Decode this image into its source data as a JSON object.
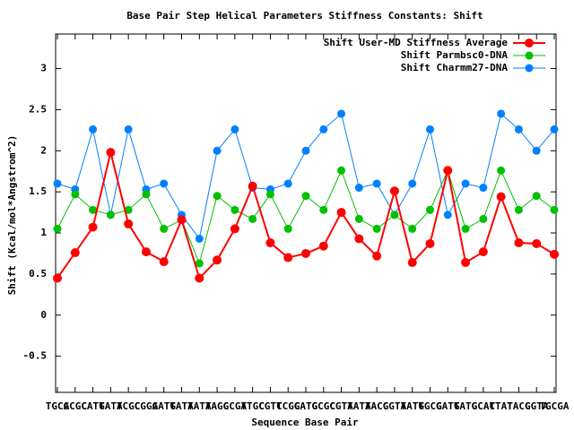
{
  "chart_data": {
    "type": "line",
    "title": "Base Pair Step Helical Parameters Stiffness Constants: Shift",
    "x_label": "Sequence Base Pair",
    "y_label": "Shift (Kcal/mol*Angstrom^2)",
    "categories": [
      "TGCA",
      "GCGC",
      "CATG",
      "TATA",
      "TCGC",
      "CGGA",
      "GATG",
      "TATA",
      "TATA",
      "TAGC",
      "GCGT",
      "ATGC",
      "CGTC",
      "TCGC",
      "GATG",
      "GCGC",
      "CGTA",
      "TATA",
      "TACG",
      "CGTA",
      "TATG",
      "TGCG",
      "GATG",
      "TATG",
      "GCAT",
      "CTAT",
      "TACG",
      "CGTA",
      "TGCGA"
    ],
    "series": [
      {
        "name": "Shift User-MD Stiffness Average",
        "color": "#ff0000",
        "values": [
          0.45,
          0.76,
          1.07,
          1.98,
          1.11,
          0.77,
          0.65,
          1.16,
          0.45,
          0.67,
          1.05,
          1.57,
          0.88,
          0.7,
          0.75,
          0.84,
          1.25,
          0.93,
          0.72,
          1.51,
          0.64,
          0.87,
          1.76,
          0.64,
          0.77,
          1.44,
          0.88,
          0.87,
          0.74
        ]
      },
      {
        "name": "Shift Parmbsc0-DNA",
        "color": "#00c000",
        "values": [
          1.05,
          1.47,
          1.28,
          1.22,
          1.28,
          1.47,
          1.05,
          1.16,
          0.63,
          1.45,
          1.28,
          1.17,
          1.47,
          1.05,
          1.45,
          1.28,
          1.76,
          1.17,
          1.05,
          1.22,
          1.05,
          1.28,
          1.76,
          1.05,
          1.17,
          1.76,
          1.28,
          1.45,
          1.28
        ]
      },
      {
        "name": "Shift Charmm27-DNA",
        "color": "#0080ff",
        "values": [
          1.6,
          1.53,
          2.26,
          1.22,
          2.26,
          1.53,
          1.6,
          1.22,
          0.93,
          2.0,
          2.26,
          1.55,
          1.53,
          1.6,
          2.0,
          2.26,
          2.45,
          1.55,
          1.6,
          1.22,
          1.6,
          2.26,
          1.22,
          1.6,
          1.55,
          2.45,
          2.26,
          2.0,
          2.26
        ]
      }
    ],
    "ylim": [
      -0.94,
      3.42
    ],
    "yticks": [
      -0.5,
      0,
      0.5,
      1,
      1.5,
      2,
      2.5,
      3
    ],
    "legend": "top-right"
  }
}
